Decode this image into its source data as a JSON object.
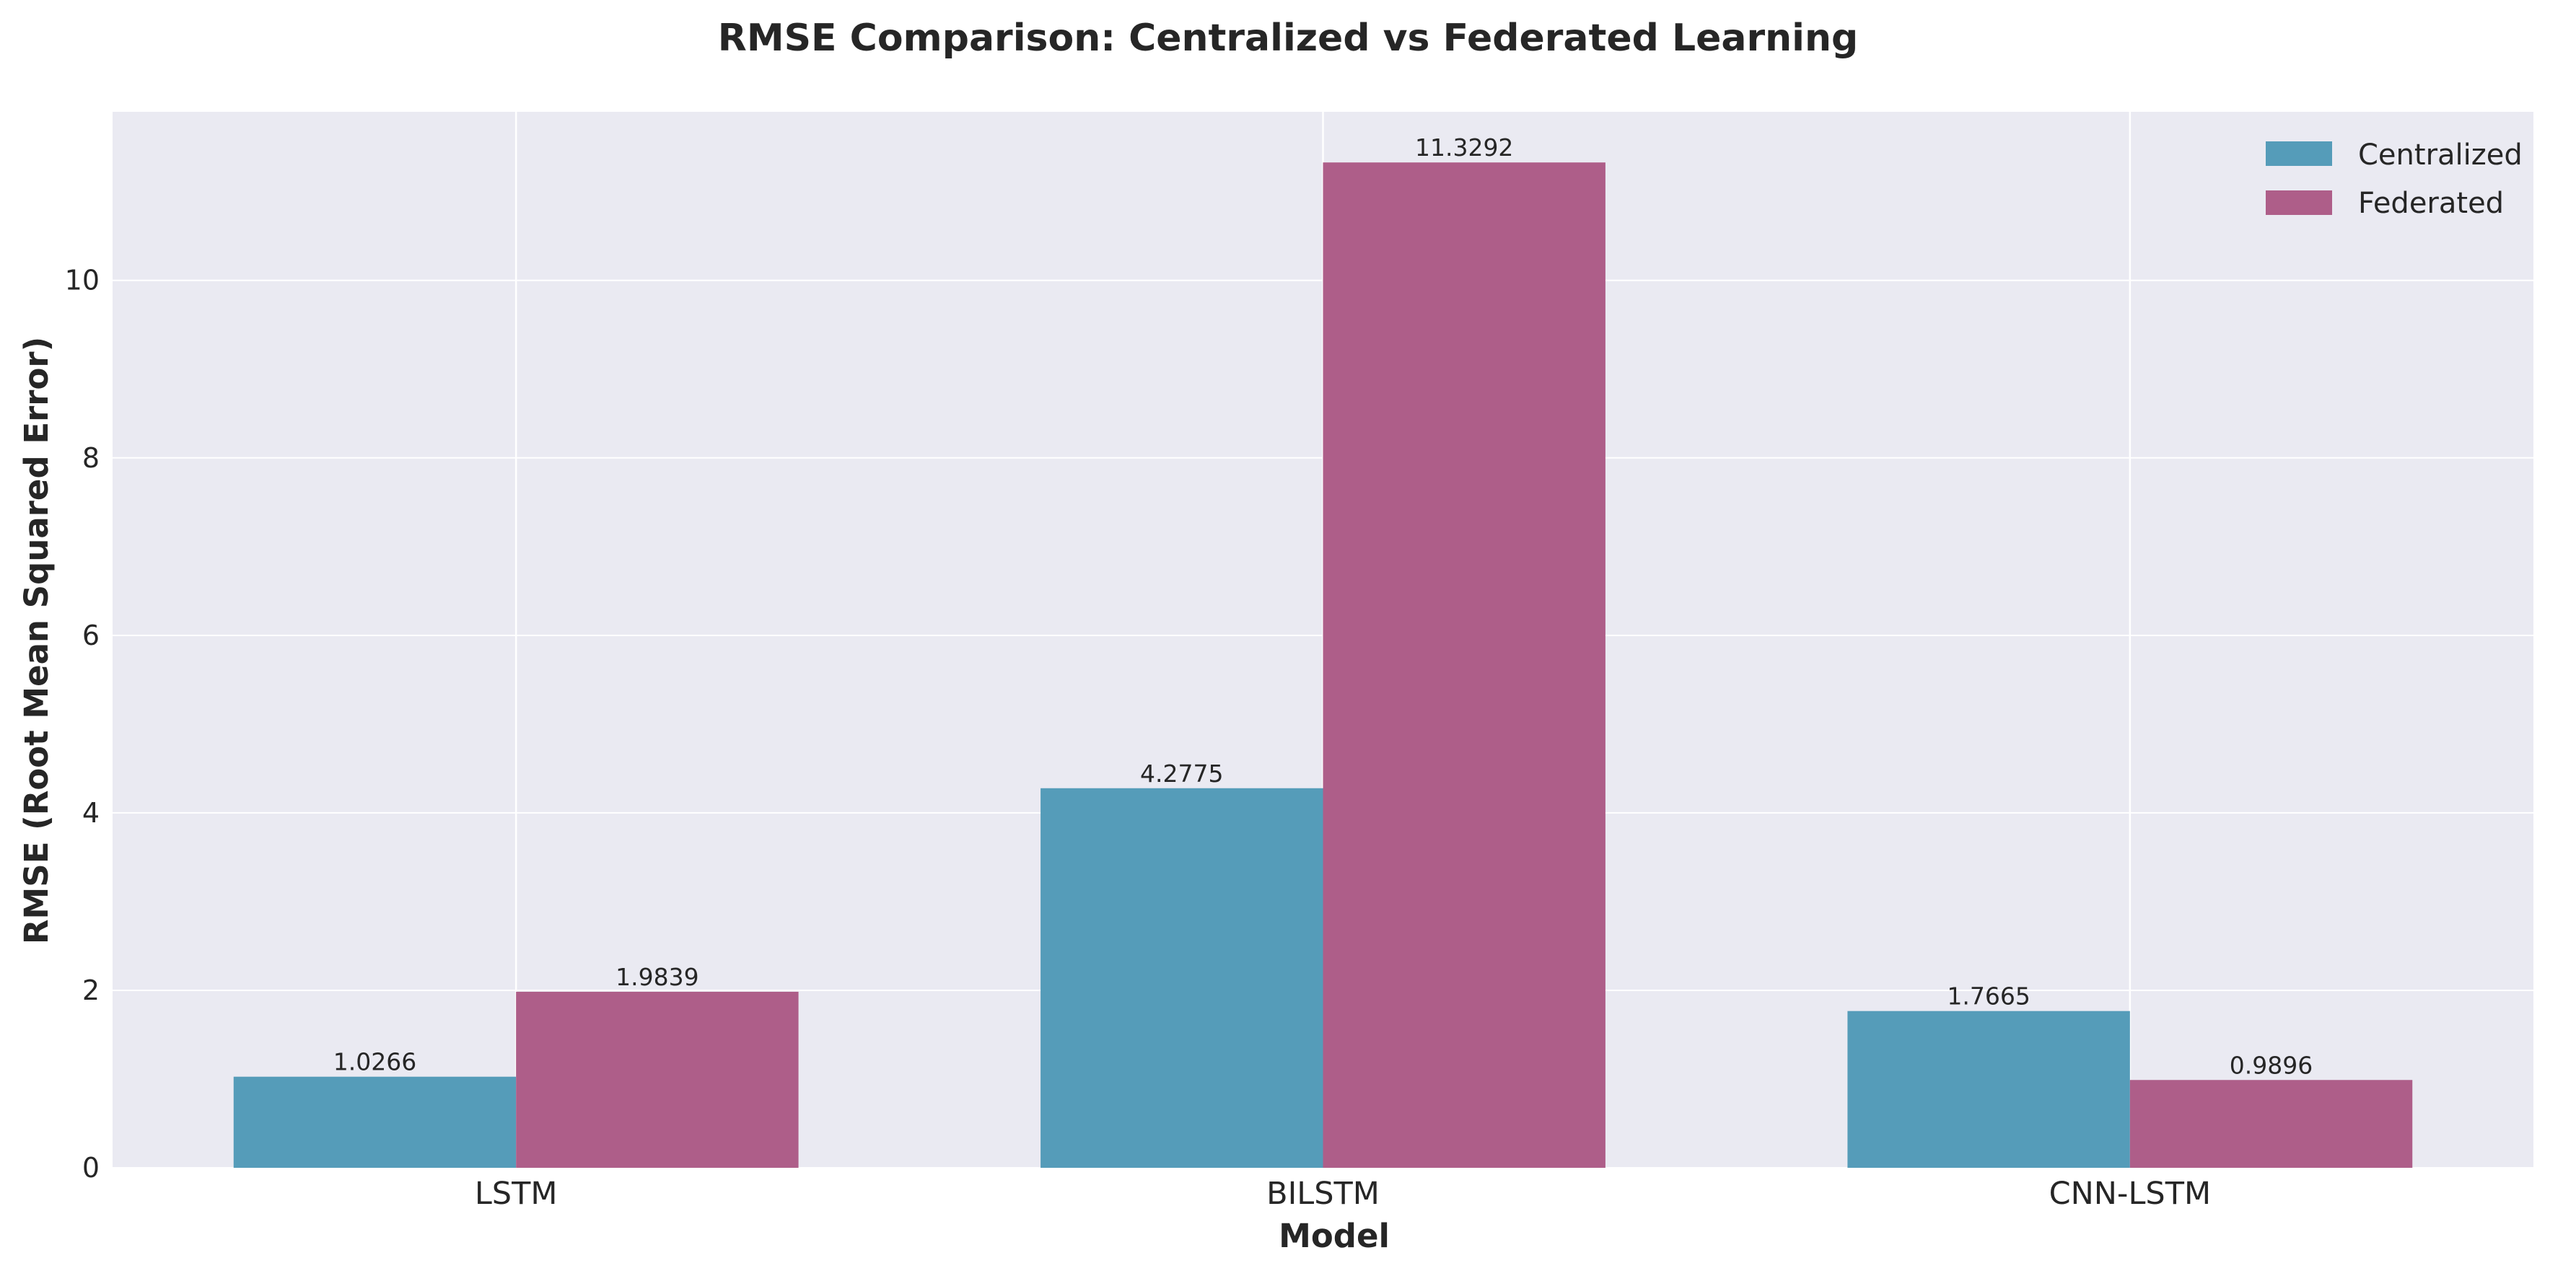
{
  "chart_data": {
    "type": "bar",
    "title": "RMSE Comparison: Centralized vs Federated Learning",
    "xlabel": "Model",
    "ylabel": "RMSE (Root Mean Squared Error)",
    "categories": [
      "LSTM",
      "BILSTM",
      "CNN-LSTM"
    ],
    "series": [
      {
        "name": "Centralized",
        "values": [
          1.0266,
          4.2775,
          1.7665
        ],
        "labels": [
          "1.0266",
          "4.2775",
          "1.7665"
        ],
        "color": "#559cb9"
      },
      {
        "name": "Federated",
        "values": [
          1.9839,
          11.3292,
          0.9896
        ],
        "labels": [
          "1.9839",
          "11.3292",
          "0.9896"
        ],
        "color": "#ae5e89"
      }
    ],
    "ylim": [
      0,
      11.9
    ],
    "yticks": [
      0,
      2,
      4,
      6,
      8,
      10
    ],
    "ytick_labels": [
      "0",
      "2",
      "4",
      "6",
      "8",
      "10"
    ],
    "grid": true,
    "legend_position": "top-right",
    "plot_background": "#eaeaf2",
    "grid_color": "#ffffff"
  }
}
